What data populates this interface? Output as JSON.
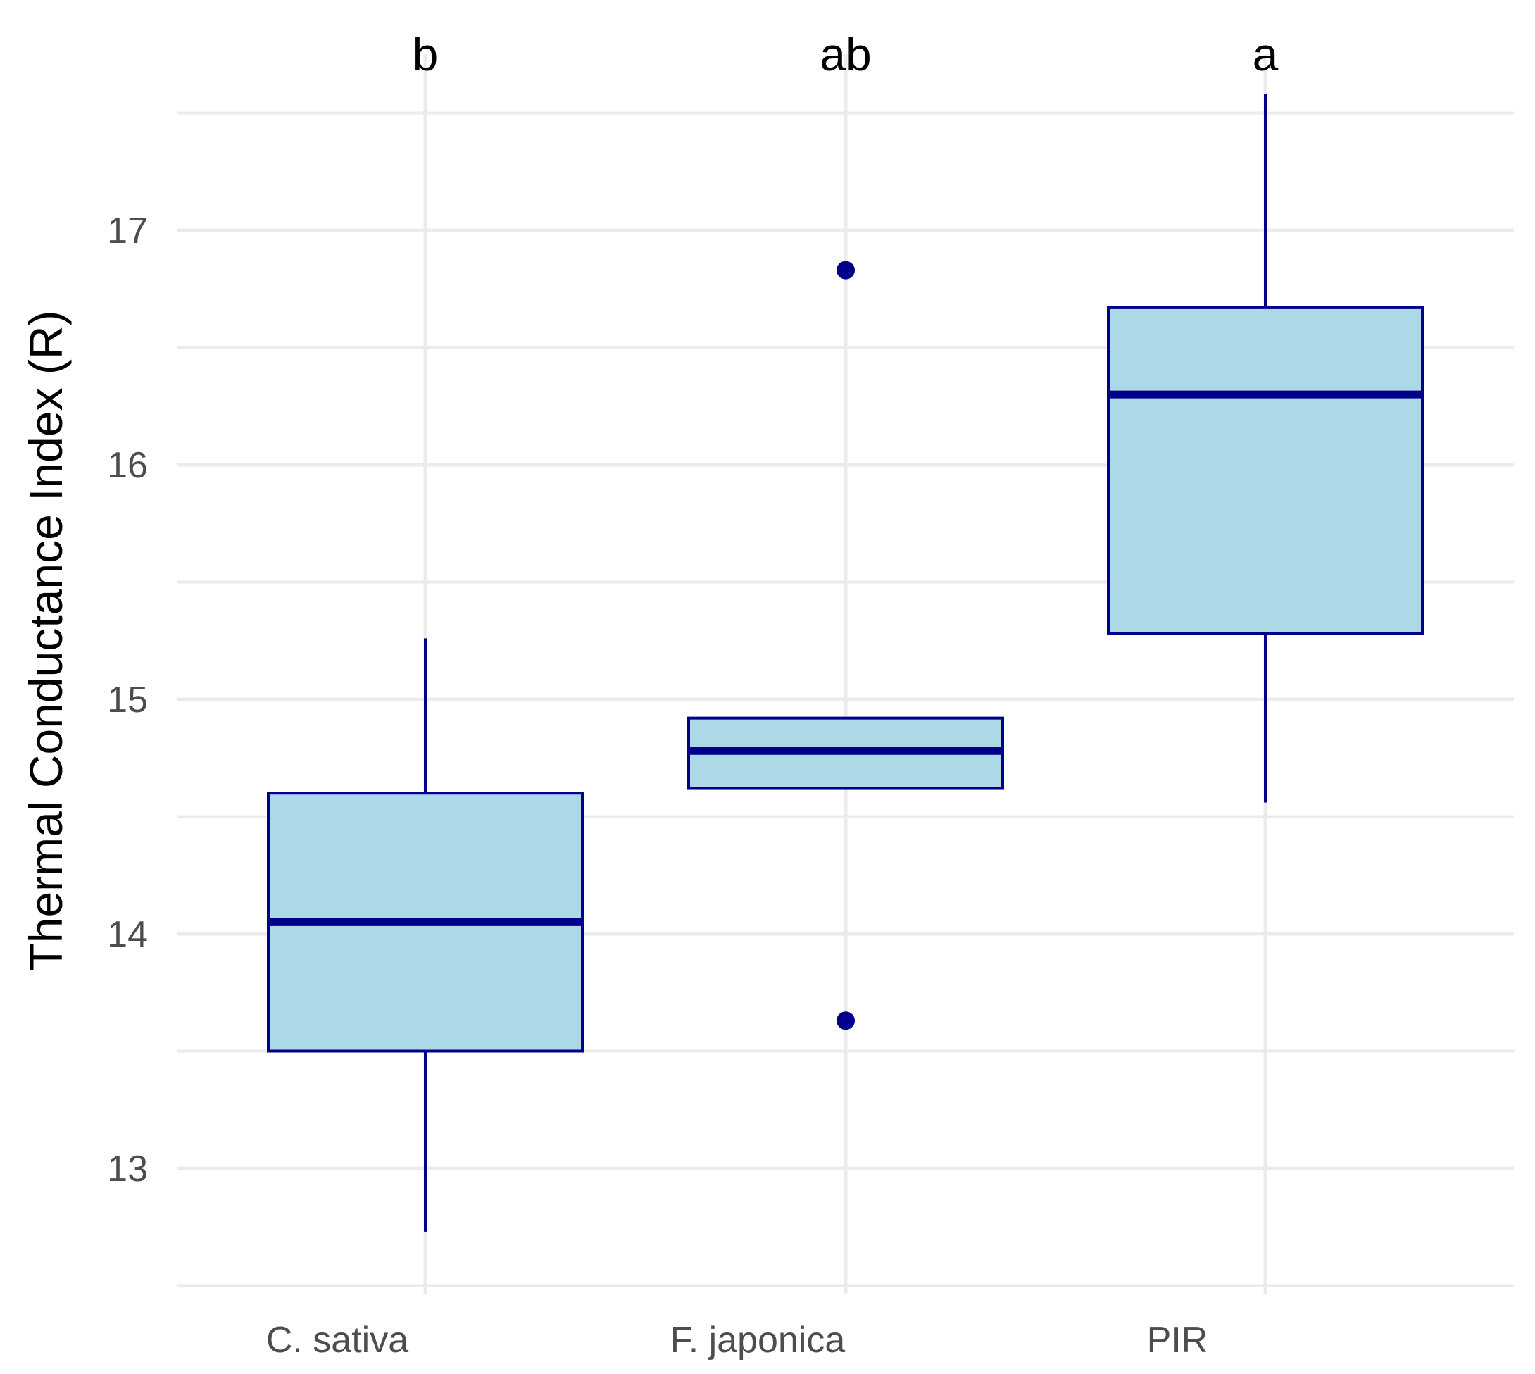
{
  "chart_data": {
    "type": "box",
    "title": "",
    "xlabel": "",
    "ylabel": "Thermal Conductance Index (R)",
    "ylim": [
      12.5,
      17.75
    ],
    "y_ticks": [
      13,
      14,
      15,
      16,
      17
    ],
    "grid": true,
    "categories": [
      "C. sativa",
      "F. japonica",
      "PIR"
    ],
    "boxes": [
      {
        "category": "C. sativa",
        "whisker_low": 12.73,
        "q1": 13.5,
        "median": 14.05,
        "q3": 14.6,
        "whisker_high": 15.26,
        "outliers": [],
        "significance": "b"
      },
      {
        "category": "F. japonica",
        "whisker_low": 14.62,
        "q1": 14.62,
        "median": 14.78,
        "q3": 14.92,
        "whisker_high": 14.92,
        "outliers": [
          16.83,
          13.63
        ],
        "significance": "ab"
      },
      {
        "category": "PIR",
        "whisker_low": 14.56,
        "q1": 15.28,
        "median": 16.3,
        "q3": 16.67,
        "whisker_high": 17.58,
        "outliers": [],
        "significance": "a"
      }
    ],
    "colors": {
      "fill": "#add8e6",
      "stroke": "#00008b",
      "grid": "#ebebeb"
    }
  }
}
